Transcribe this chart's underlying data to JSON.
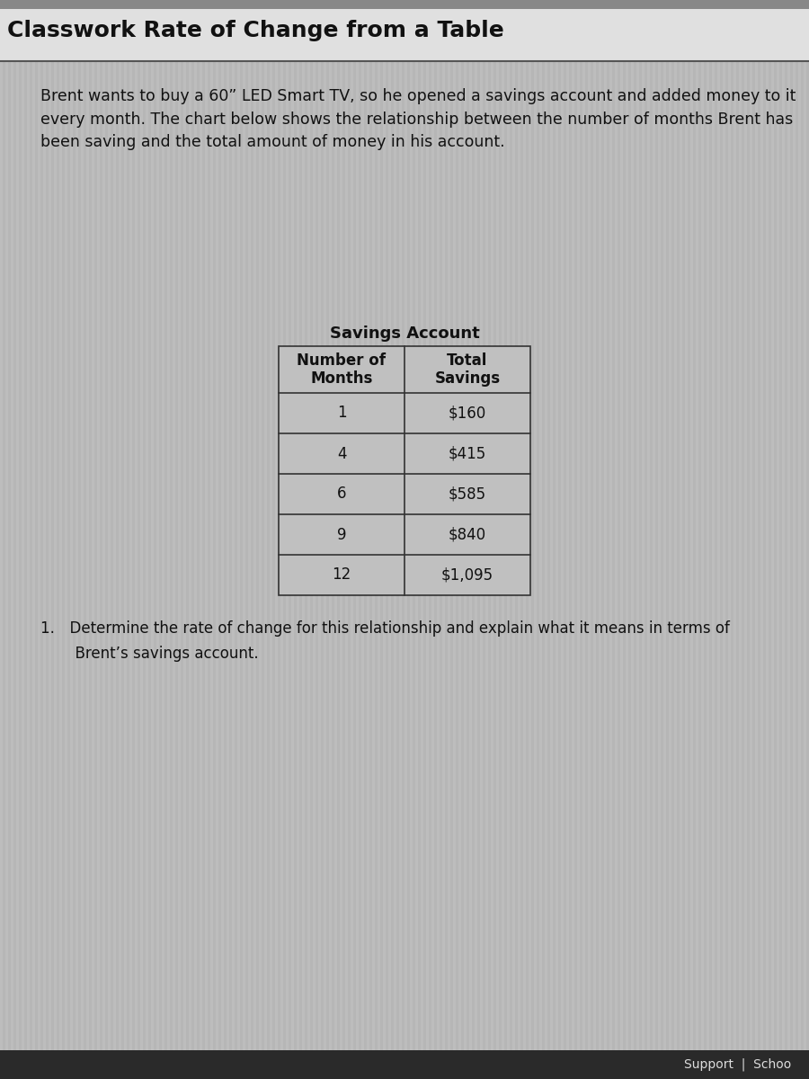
{
  "title": "Classwork Rate of Change from a Table",
  "title_fontsize": 18,
  "title_fontweight": "bold",
  "intro_text": "Brent wants to buy a 60” LED Smart TV, so he opened a savings account and added money to it\nevery month. The chart below shows the relationship between the number of months Brent has\nbeen saving and the total amount of money in his account.",
  "intro_fontsize": 12.5,
  "table_title": "Savings Account",
  "table_title_fontsize": 13,
  "table_title_fontweight": "bold",
  "col_headers": [
    "Number of\nMonths",
    "Total\nSavings"
  ],
  "table_data": [
    [
      "1",
      "$160"
    ],
    [
      "4",
      "$415"
    ],
    [
      "6",
      "$585"
    ],
    [
      "9",
      "$840"
    ],
    [
      "12",
      "$1,095"
    ]
  ],
  "table_fontsize": 12,
  "question_line1": "1. Determine the rate of change for this relationship and explain what it means in terms of",
  "question_line2": "   Brent’s savings account.",
  "question_fontsize": 12,
  "footer_text": "Support  |  Schoo",
  "footer_fontsize": 10,
  "bg_color": "#b8b8b8",
  "stripe_color_light": "#c5c5c5",
  "stripe_color_dark": "#b0b0b0",
  "title_bar_color": "#e0e0e0",
  "title_border_color": "#555555",
  "table_bg": "#c0c0c0",
  "table_border_color": "#333333",
  "text_color": "#111111",
  "footer_bg": "#2a2a2a",
  "footer_text_color": "#dddddd"
}
